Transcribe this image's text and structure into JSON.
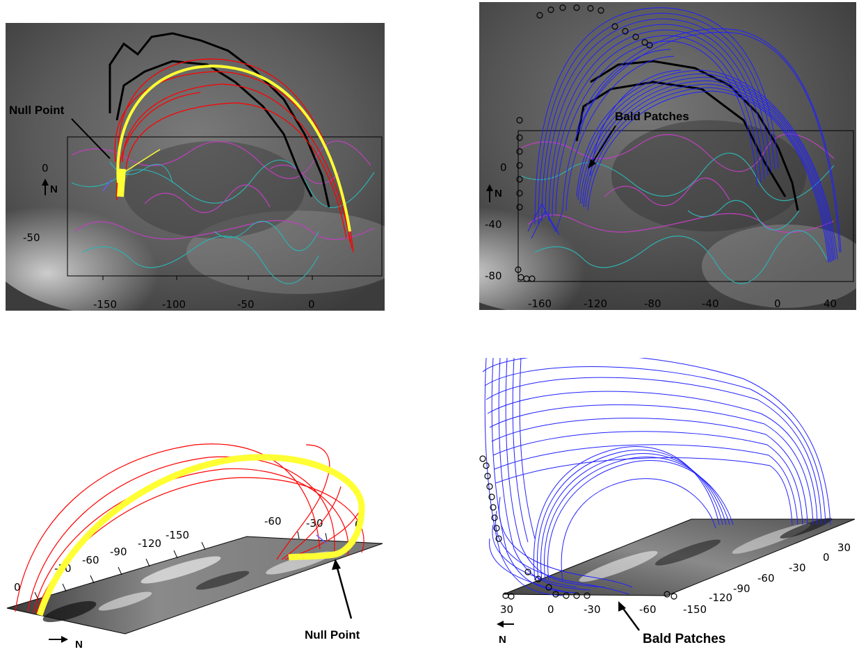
{
  "panels": [
    {
      "id": "top-left",
      "view": "top",
      "x_ticks": [
        "-150",
        "-100",
        "-50",
        "0"
      ],
      "y_ticks": [
        "0",
        "-50"
      ],
      "annotation": "Null Point",
      "north_label": "N",
      "field_line_colors": {
        "outer": "#ff0000",
        "core": "#ffff33"
      },
      "contour_colors": {
        "positive": "#c040c0",
        "negative": "#30b0b0"
      }
    },
    {
      "id": "top-right",
      "view": "top",
      "x_ticks": [
        "-160",
        "-120",
        "-80",
        "-40",
        "0",
        "40"
      ],
      "y_ticks": [
        "0",
        "-40",
        "-80"
      ],
      "annotation": "Bald Patches",
      "north_label": "N",
      "field_line_color": "#2020ff",
      "marker": "black-open-circle",
      "contour_colors": {
        "positive": "#c040c0",
        "negative": "#30b0b0"
      }
    },
    {
      "id": "bottom-left",
      "view": "perspective",
      "ticks_far": [
        "-150",
        "-120",
        "-90",
        "-60",
        "-30",
        "0"
      ],
      "ticks_near": [
        "-60",
        "-30",
        "0"
      ],
      "annotation": "Null Point",
      "north_label": "N",
      "field_line_colors": {
        "outer": "#ff0000",
        "core": "#ffff33"
      }
    },
    {
      "id": "bottom-right",
      "view": "perspective",
      "ticks_right": [
        "-150",
        "-120",
        "-90",
        "-60",
        "-30",
        "0",
        "30"
      ],
      "ticks_front": [
        "30",
        "0",
        "-30",
        "-60"
      ],
      "annotation": "Bald Patches",
      "north_label": "N",
      "field_line_color": "#2020ff",
      "marker": "black-open-circle"
    }
  ]
}
